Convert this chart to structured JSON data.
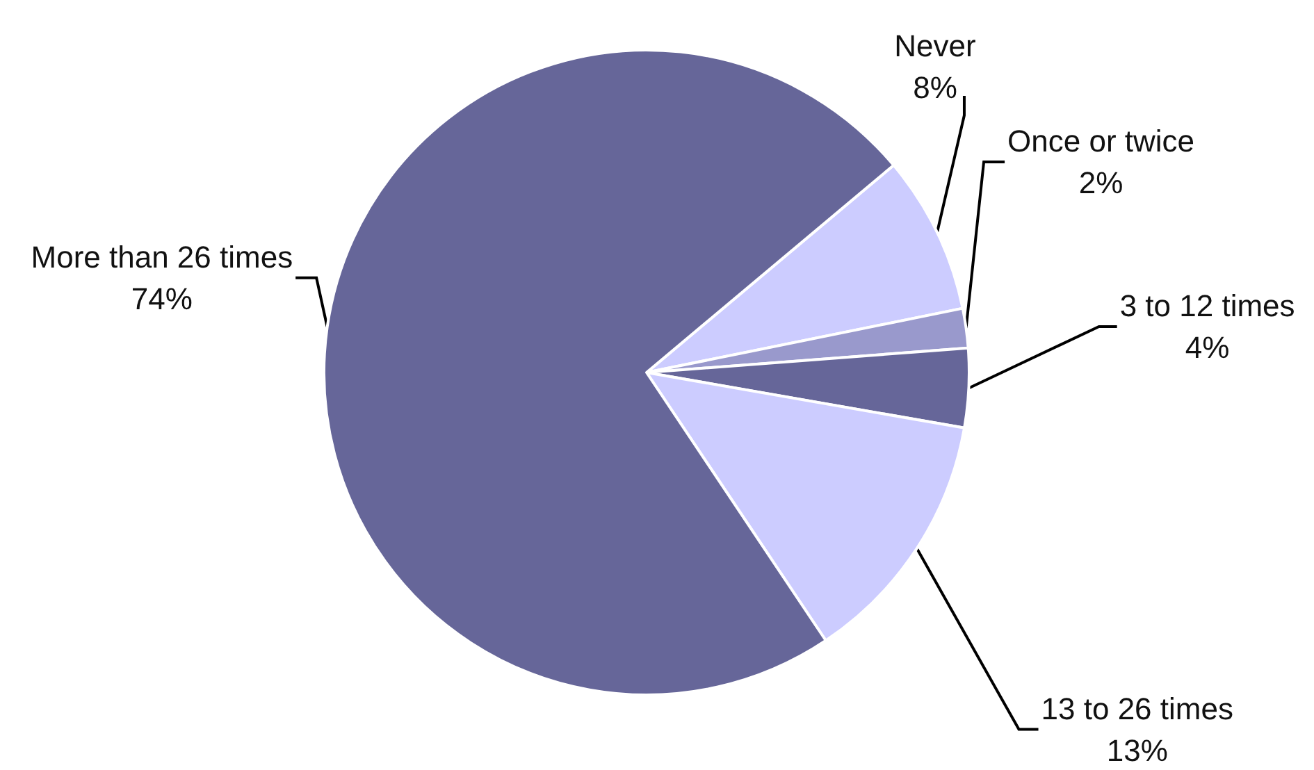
{
  "chart_data": {
    "type": "pie",
    "categories": [
      "Never",
      "Once or twice",
      "3 to 12 times",
      "13 to 26 times",
      "More than 26 times"
    ],
    "values": [
      8,
      2,
      4,
      13,
      74
    ],
    "value_labels": [
      "8%",
      "2%",
      "4%",
      "13%",
      "74%"
    ],
    "colors": [
      "#ccccff",
      "#9999cc",
      "#666699",
      "#ccccff",
      "#666699"
    ],
    "legend": false
  }
}
